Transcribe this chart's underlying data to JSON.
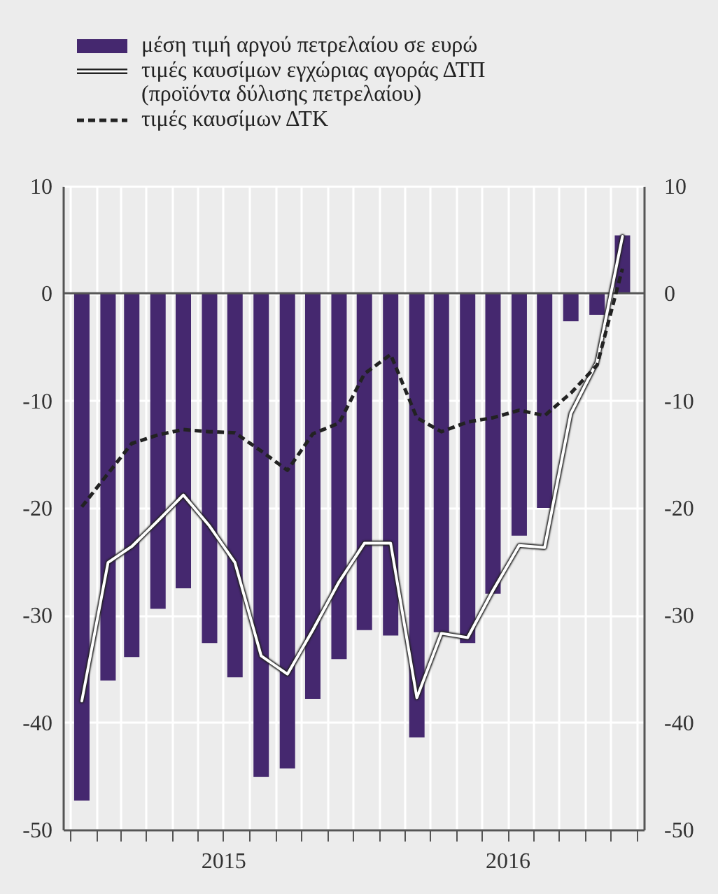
{
  "chart_data": {
    "type": "bar",
    "x": [
      "2015-01-15",
      "2015-02-15",
      "2015-03-15",
      "2015-04-15",
      "2015-05-15",
      "2015-06-15",
      "2015-07-15",
      "2015-08-15",
      "2015-09-15",
      "2015-10-15",
      "2015-11-15",
      "2015-12-15",
      "2016-01-15",
      "2016-02-15",
      "2016-03-15",
      "2016-04-15",
      "2016-05-15",
      "2016-06-15",
      "2016-07-15",
      "2016-08-15",
      "2016-09-15",
      "2016-10-15"
    ],
    "series": [
      {
        "name": "μέση τιμή αργού πετρελαίου σε ευρώ",
        "color": "#45286f",
        "values": [
          -47.3,
          -36.1,
          -33.9,
          -29.4,
          -27.5,
          -32.6,
          -35.8,
          -45.1,
          -44.3,
          -37.8,
          -34.1,
          -31.4,
          -31.9,
          -41.4,
          -31.6,
          -32.6,
          -28.0,
          -22.6,
          -20.0,
          -2.6,
          -2.0,
          5.4
        ]
      },
      {
        "name": "τιμές καυσίμων εγχώριας αγοράς ΔΤΠ (προϊόντα δύλισης πετρελαίου)",
        "type": "line",
        "axis": "y2",
        "color": "#ffffff",
        "line_style": "solid",
        "values": [
          -38.0,
          -25.1,
          -23.6,
          -21.2,
          -18.8,
          -21.7,
          -25.1,
          -33.8,
          -35.5,
          -31.4,
          -26.9,
          -23.3,
          -23.3,
          -37.7,
          -31.7,
          -32.1,
          -27.7,
          -23.5,
          -23.7,
          -11.2,
          -6.4,
          5.3
        ]
      },
      {
        "name": "τιμές καυσίμων ΔΤΚ",
        "type": "line",
        "axis": "y2",
        "color": "#222222",
        "line_style": "dashed",
        "values": [
          -19.9,
          -16.8,
          -14.0,
          -13.2,
          -12.7,
          -12.9,
          -13.0,
          -14.7,
          -16.5,
          -13.1,
          -12.1,
          -7.5,
          -5.7,
          -11.6,
          -12.9,
          -12.0,
          -11.6,
          -10.9,
          -11.4,
          -9.3,
          -6.7,
          2.3
        ]
      }
    ],
    "xlim": [
      "2015-01",
      "2016-11"
    ],
    "xticks": [
      {
        "value": "2015-01",
        "label": null
      },
      {
        "value": "2015-02",
        "label": null
      },
      {
        "value": "2015-03",
        "label": null
      },
      {
        "value": "2015-04",
        "label": null
      },
      {
        "value": "2015-05",
        "label": null
      },
      {
        "value": "2015-06",
        "label": null
      },
      {
        "value": "2015-07",
        "label": "2015"
      },
      {
        "value": "2015-08",
        "label": null
      },
      {
        "value": "2015-09",
        "label": null
      },
      {
        "value": "2015-10",
        "label": null
      },
      {
        "value": "2015-11",
        "label": null
      },
      {
        "value": "2015-12",
        "label": null
      },
      {
        "value": "2016-01",
        "label": null
      },
      {
        "value": "2016-02",
        "label": null
      },
      {
        "value": "2016-03",
        "label": null
      },
      {
        "value": "2016-04",
        "label": null
      },
      {
        "value": "2016-05",
        "label": null
      },
      {
        "value": "2016-06",
        "label": "2016"
      },
      {
        "value": "2016-07",
        "label": null
      },
      {
        "value": "2016-08",
        "label": null
      },
      {
        "value": "2016-09",
        "label": null
      },
      {
        "value": "2016-10",
        "label": null
      },
      {
        "value": "2016-11",
        "label": null
      }
    ],
    "ylim": [
      -50,
      10
    ],
    "yticks": [
      -50,
      -40,
      -30,
      -20,
      -10,
      0,
      10
    ],
    "y2lim": [
      -50,
      10
    ],
    "y2ticks": [
      -50,
      -40,
      -30,
      -20,
      -10,
      0,
      10
    ],
    "ref_lines": [
      {
        "axis": "y",
        "value": 0,
        "color": "#555555"
      }
    ],
    "grid": true,
    "legend": "top left"
  }
}
